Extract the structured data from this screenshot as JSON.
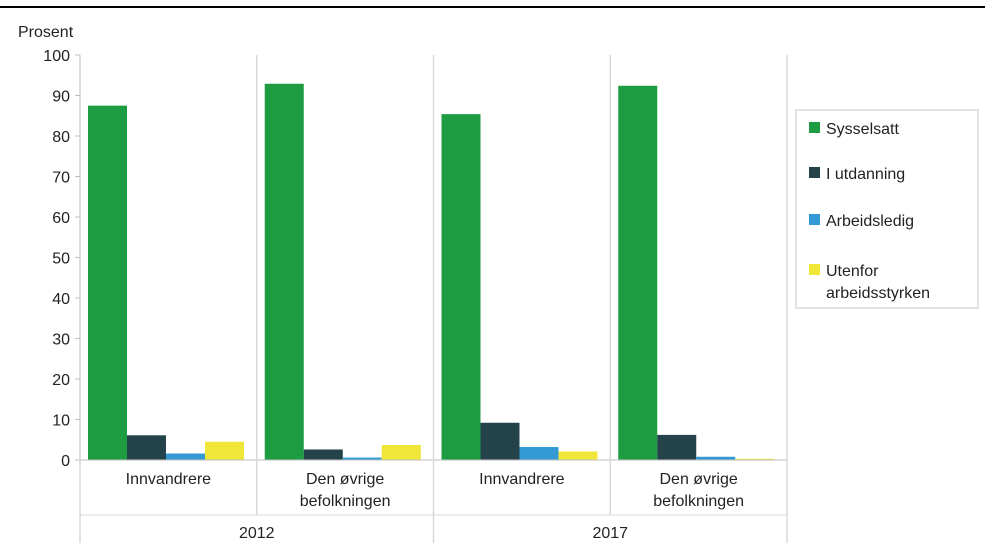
{
  "chart_data": {
    "type": "bar",
    "ylabel": "Prosent",
    "ylim": [
      0,
      100
    ],
    "yticks": [
      0,
      10,
      20,
      30,
      40,
      50,
      60,
      70,
      80,
      90,
      100
    ],
    "grid": false,
    "legend_position": "right",
    "groups": [
      {
        "label": "2012",
        "categories": [
          [
            "Innvandrere"
          ],
          [
            "Den øvrige",
            "befolkningen"
          ]
        ]
      },
      {
        "label": "2017",
        "categories": [
          [
            "Innvandrere"
          ],
          [
            "Den øvrige",
            "befolkningen"
          ]
        ]
      }
    ],
    "series": [
      {
        "name": [
          "Sysselsatt"
        ],
        "color": "#1e9c42",
        "values": [
          87.5,
          92.9,
          85.4,
          92.4
        ]
      },
      {
        "name": [
          "I utdanning"
        ],
        "color": "#24424a",
        "values": [
          6.1,
          2.6,
          9.2,
          6.2
        ]
      },
      {
        "name": [
          "Arbeidsledig"
        ],
        "color": "#3399d4",
        "values": [
          1.6,
          0.6,
          3.2,
          0.8
        ]
      },
      {
        "name": [
          "Utenfor",
          "arbeidsstyrken"
        ],
        "color": "#f0e637",
        "values": [
          4.5,
          3.7,
          2.1,
          0.3
        ]
      }
    ]
  }
}
